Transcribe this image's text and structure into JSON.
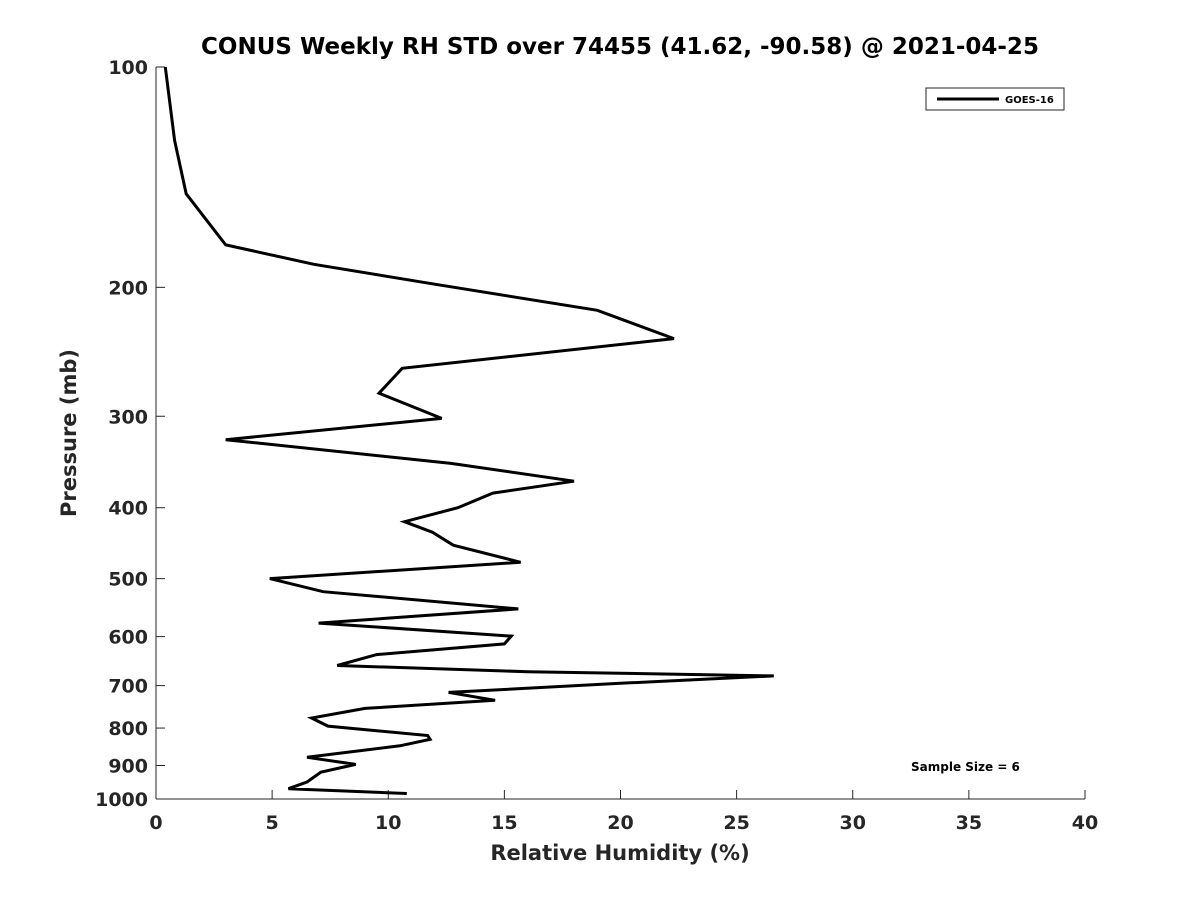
{
  "chart_data": {
    "type": "line",
    "title": "CONUS Weekly RH STD over 74455 (41.62, -90.58) @ 2021-04-25",
    "xlabel": "Relative Humidity (%)",
    "ylabel": "Pressure (mb)",
    "xlim": [
      0,
      40
    ],
    "ylim": [
      100,
      1000
    ],
    "y_scale": "log",
    "y_reversed": true,
    "x_ticks": [
      0,
      5,
      10,
      15,
      20,
      25,
      30,
      35,
      40
    ],
    "y_ticks": [
      100,
      200,
      300,
      400,
      500,
      600,
      700,
      800,
      900,
      1000
    ],
    "grid": false,
    "legend_position": "top-right",
    "series": [
      {
        "name": "GOES-16",
        "color": "#000000",
        "points": [
          [
            0.4,
            100
          ],
          [
            0.8,
            126
          ],
          [
            1.3,
            149
          ],
          [
            3.0,
            175
          ],
          [
            6.8,
            186
          ],
          [
            12.0,
            198
          ],
          [
            19.0,
            215
          ],
          [
            22.3,
            235
          ],
          [
            10.6,
            258
          ],
          [
            9.6,
            279
          ],
          [
            12.3,
            302
          ],
          [
            3.0,
            323
          ],
          [
            12.7,
            348
          ],
          [
            18.0,
            368
          ],
          [
            14.5,
            382
          ],
          [
            13.0,
            400
          ],
          [
            10.7,
            418
          ],
          [
            11.9,
            432
          ],
          [
            12.8,
            450
          ],
          [
            15.7,
            475
          ],
          [
            4.9,
            500
          ],
          [
            7.2,
            521
          ],
          [
            15.6,
            550
          ],
          [
            7.0,
            575
          ],
          [
            15.3,
            599
          ],
          [
            15.0,
            614
          ],
          [
            9.5,
            635
          ],
          [
            7.8,
            657
          ],
          [
            16.0,
            670
          ],
          [
            26.6,
            679
          ],
          [
            20.0,
            695
          ],
          [
            12.6,
            715
          ],
          [
            14.6,
            733
          ],
          [
            9.0,
            752
          ],
          [
            6.7,
            775
          ],
          [
            7.4,
            795
          ],
          [
            11.7,
            819
          ],
          [
            11.8,
            829
          ],
          [
            10.5,
            846
          ],
          [
            6.5,
            877
          ],
          [
            8.6,
            897
          ],
          [
            7.1,
            919
          ],
          [
            6.5,
            948
          ],
          [
            5.7,
            968
          ],
          [
            10.8,
            983
          ]
        ]
      }
    ]
  },
  "annotation": "Sample Size = 6"
}
